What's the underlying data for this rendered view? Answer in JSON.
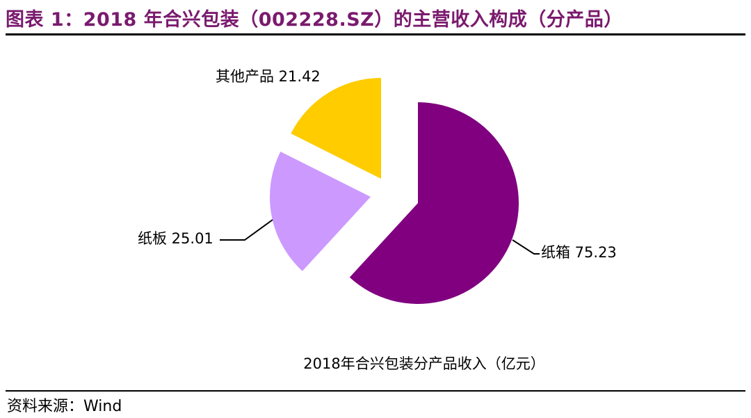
{
  "title": "图表 1：2018 年合兴包装（002228.SZ）的主营收入构成（分产品）",
  "source": "资料来源：Wind",
  "chart_data": {
    "type": "pie",
    "title": "2018年合兴包装分产品收入（亿元）",
    "unit": "亿元",
    "exploded": true,
    "slices": [
      {
        "label": "纸箱",
        "value": 75.23,
        "color": "#800080",
        "display": "纸箱 75.23"
      },
      {
        "label": "纸板",
        "value": 25.01,
        "color": "#cc99ff",
        "display": "纸板 25.01"
      },
      {
        "label": "其他产品",
        "value": 21.42,
        "color": "#ffcc00",
        "display": "其他产品 21.42"
      }
    ]
  }
}
